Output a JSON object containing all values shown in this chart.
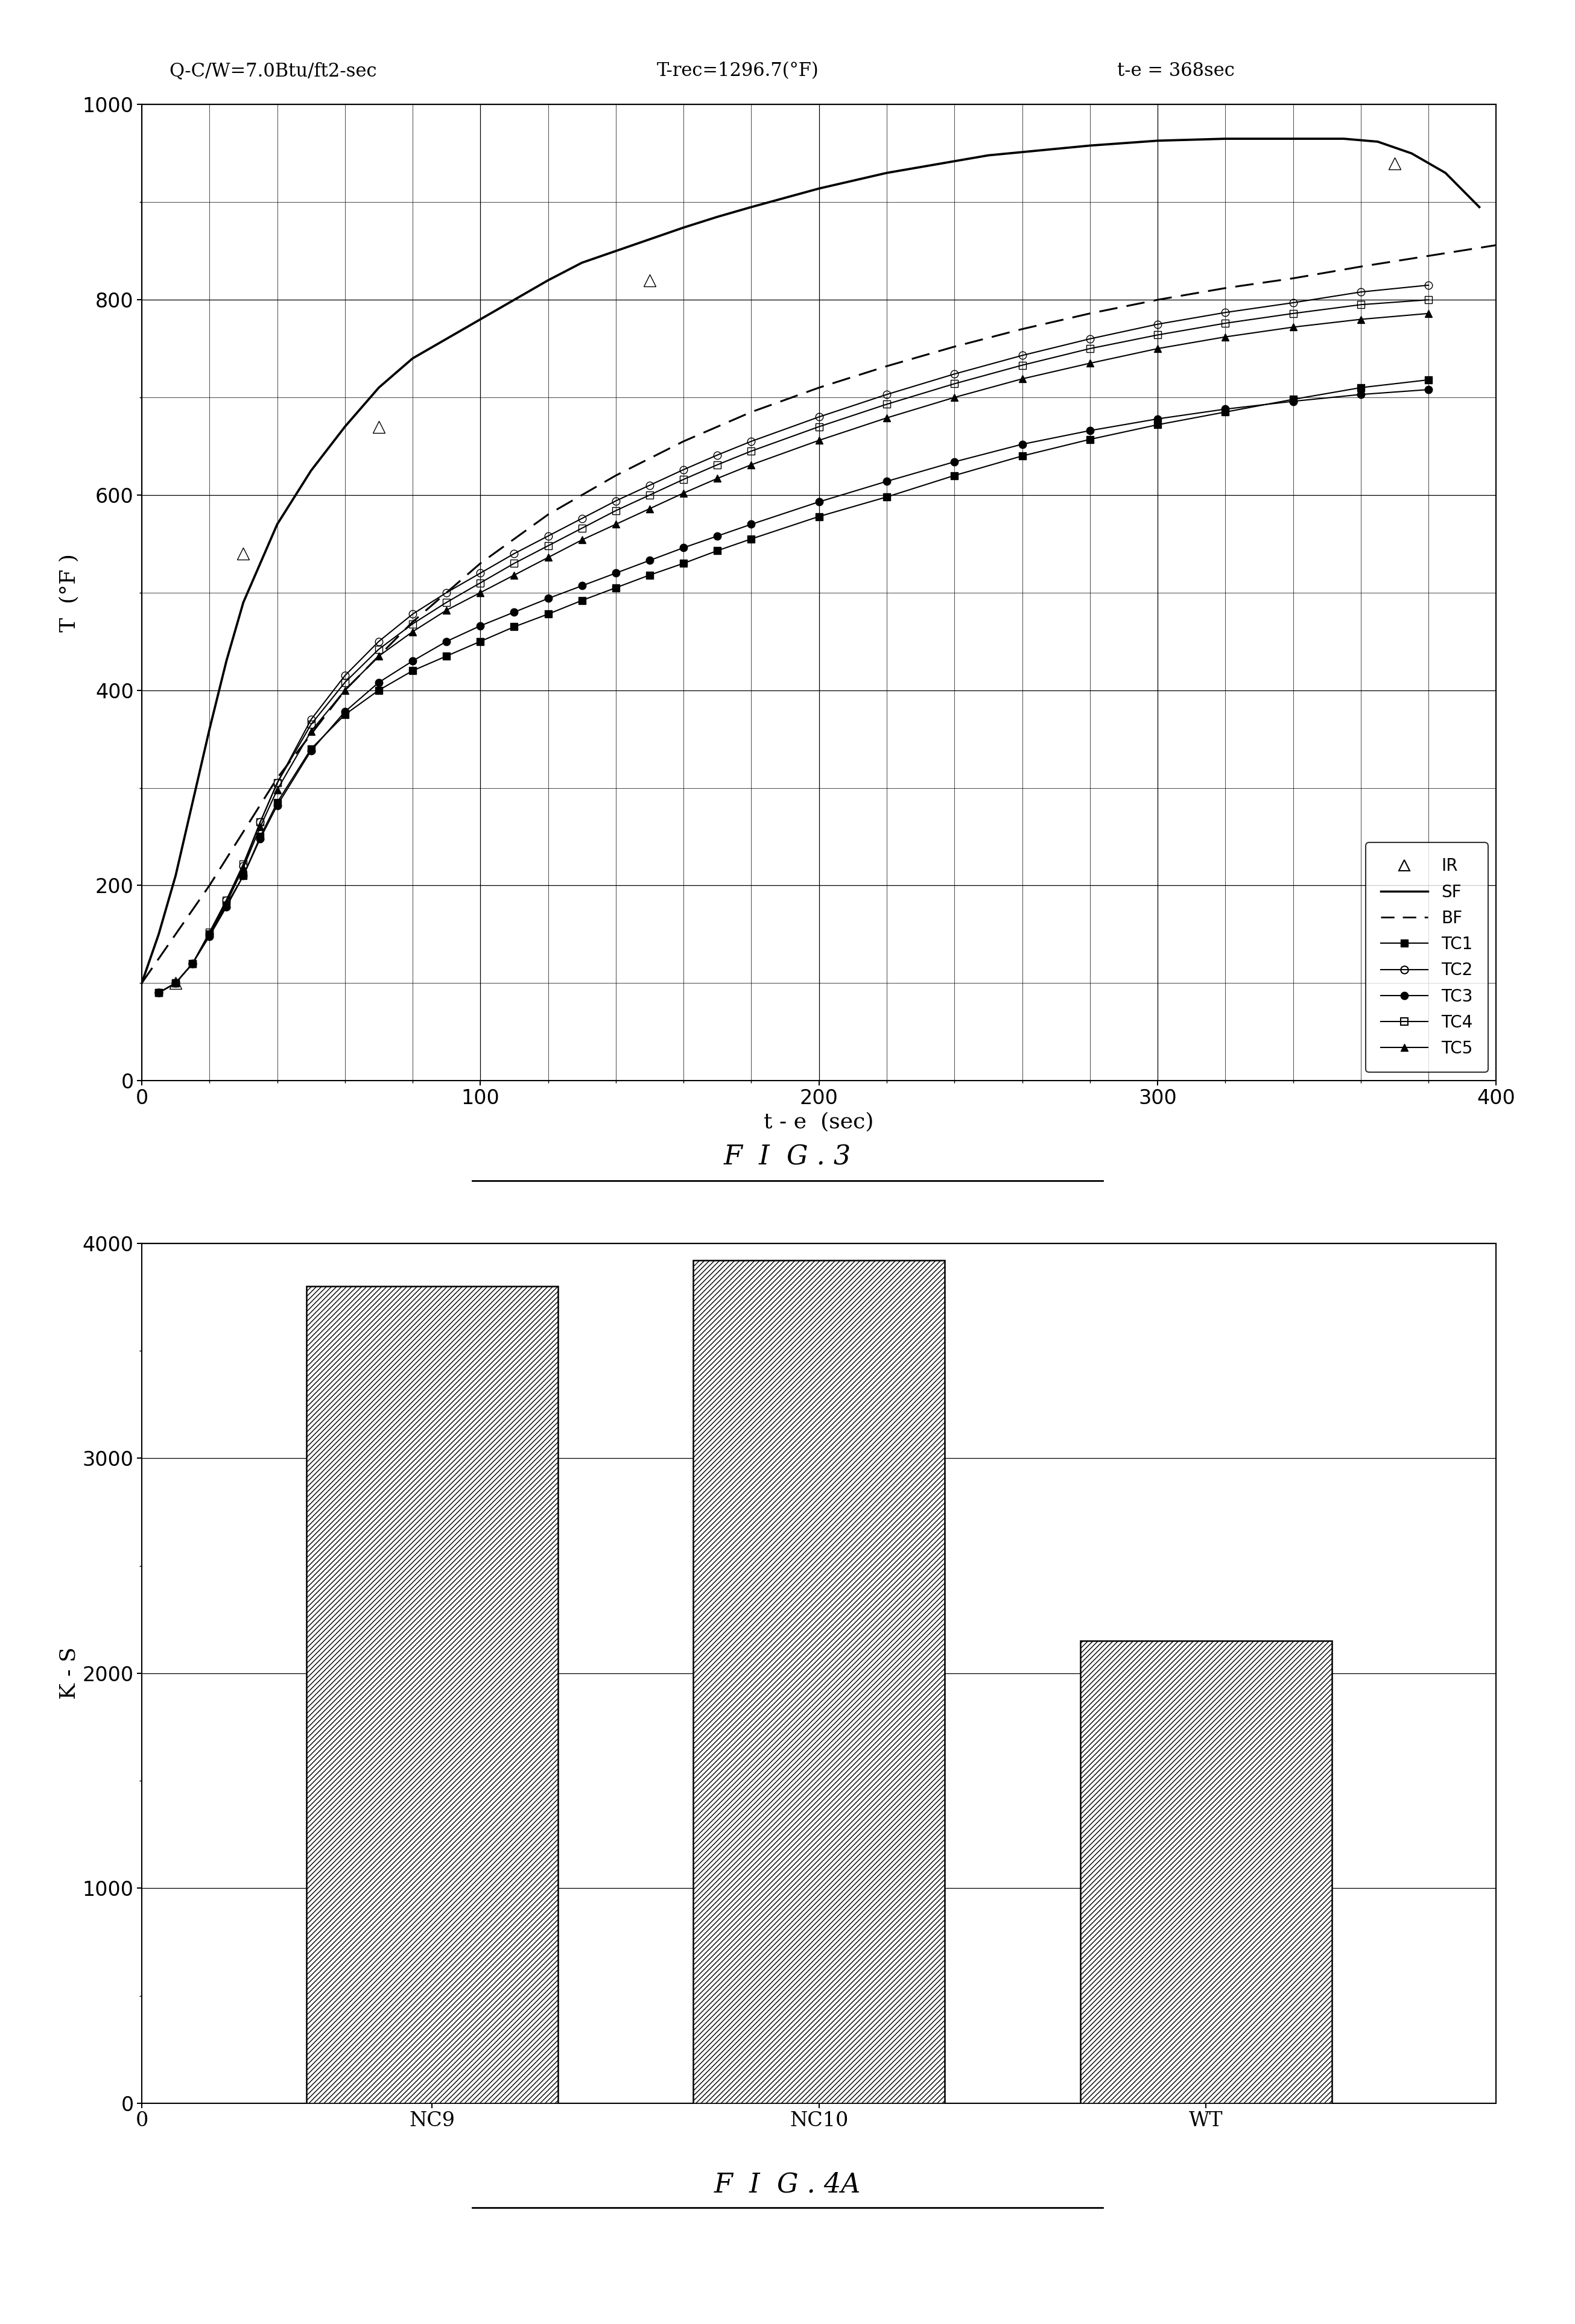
{
  "fig3": {
    "title_left": "Q-C/W=7.0Btu/ft2-sec",
    "title_mid": "T-rec=1296.7(°F)",
    "title_right": "t-e = 368sec",
    "xlabel": "t - e  (sec)",
    "ylabel": "T  (°F )",
    "xlim": [
      0,
      400
    ],
    "ylim": [
      0,
      1000
    ],
    "xticks": [
      0,
      100,
      200,
      300,
      400
    ],
    "yticks": [
      0,
      200,
      400,
      600,
      800,
      1000
    ],
    "IR_x": [
      10,
      30,
      70,
      150,
      370
    ],
    "IR_y": [
      100,
      540,
      670,
      820,
      940
    ],
    "SF_x": [
      0,
      5,
      10,
      15,
      20,
      25,
      30,
      40,
      50,
      60,
      70,
      80,
      90,
      100,
      110,
      120,
      130,
      140,
      150,
      160,
      170,
      180,
      200,
      220,
      250,
      280,
      300,
      320,
      340,
      355,
      365,
      375,
      385,
      395
    ],
    "SF_y": [
      100,
      150,
      210,
      285,
      360,
      430,
      490,
      570,
      625,
      670,
      710,
      740,
      760,
      780,
      800,
      820,
      838,
      850,
      862,
      874,
      885,
      895,
      914,
      930,
      948,
      958,
      963,
      965,
      965,
      965,
      962,
      950,
      930,
      895
    ],
    "BF_x": [
      0,
      20,
      40,
      60,
      80,
      100,
      120,
      140,
      160,
      180,
      200,
      220,
      240,
      260,
      280,
      300,
      320,
      340,
      360,
      380,
      400
    ],
    "BF_y": [
      100,
      200,
      310,
      400,
      470,
      530,
      580,
      620,
      655,
      685,
      710,
      732,
      752,
      770,
      786,
      800,
      812,
      822,
      834,
      845,
      856
    ],
    "TC1_x": [
      5,
      10,
      15,
      20,
      25,
      30,
      35,
      40,
      50,
      60,
      70,
      80,
      90,
      100,
      110,
      120,
      130,
      140,
      150,
      160,
      170,
      180,
      200,
      220,
      240,
      260,
      280,
      300,
      320,
      340,
      360,
      380
    ],
    "TC1_y": [
      90,
      100,
      120,
      150,
      180,
      210,
      250,
      285,
      340,
      375,
      400,
      420,
      435,
      450,
      465,
      478,
      492,
      505,
      518,
      530,
      543,
      555,
      578,
      598,
      620,
      640,
      657,
      672,
      685,
      698,
      710,
      718
    ],
    "TC2_x": [
      5,
      10,
      15,
      20,
      25,
      30,
      35,
      40,
      50,
      60,
      70,
      80,
      90,
      100,
      110,
      120,
      130,
      140,
      150,
      160,
      170,
      180,
      200,
      220,
      240,
      260,
      280,
      300,
      320,
      340,
      360,
      380
    ],
    "TC2_y": [
      90,
      100,
      120,
      150,
      185,
      220,
      265,
      305,
      370,
      415,
      450,
      478,
      500,
      520,
      540,
      558,
      576,
      594,
      610,
      626,
      641,
      655,
      680,
      703,
      724,
      743,
      760,
      775,
      787,
      797,
      808,
      815
    ],
    "TC3_x": [
      5,
      10,
      15,
      20,
      25,
      30,
      35,
      40,
      50,
      60,
      70,
      80,
      90,
      100,
      110,
      120,
      130,
      140,
      150,
      160,
      170,
      180,
      200,
      220,
      240,
      260,
      280,
      300,
      320,
      340,
      360,
      380
    ],
    "TC3_y": [
      90,
      100,
      120,
      148,
      178,
      210,
      248,
      282,
      338,
      378,
      408,
      430,
      450,
      466,
      480,
      494,
      507,
      520,
      533,
      546,
      558,
      570,
      593,
      614,
      634,
      652,
      666,
      678,
      688,
      696,
      703,
      708
    ],
    "TC4_x": [
      5,
      10,
      15,
      20,
      25,
      30,
      35,
      40,
      50,
      60,
      70,
      80,
      90,
      100,
      110,
      120,
      130,
      140,
      150,
      160,
      170,
      180,
      200,
      220,
      240,
      260,
      280,
      300,
      320,
      340,
      360,
      380
    ],
    "TC4_y": [
      90,
      100,
      120,
      152,
      185,
      222,
      265,
      305,
      365,
      408,
      442,
      468,
      490,
      510,
      530,
      548,
      566,
      584,
      600,
      616,
      631,
      645,
      670,
      693,
      714,
      733,
      750,
      764,
      776,
      786,
      795,
      800
    ],
    "TC5_x": [
      5,
      10,
      15,
      20,
      25,
      30,
      35,
      40,
      50,
      60,
      70,
      80,
      90,
      100,
      110,
      120,
      130,
      140,
      150,
      160,
      170,
      180,
      200,
      220,
      240,
      260,
      280,
      300,
      320,
      340,
      360,
      380
    ],
    "TC5_y": [
      90,
      100,
      120,
      150,
      182,
      218,
      260,
      298,
      358,
      400,
      435,
      460,
      482,
      500,
      518,
      536,
      554,
      570,
      586,
      602,
      617,
      631,
      656,
      679,
      700,
      719,
      735,
      750,
      762,
      772,
      780,
      786
    ]
  },
  "fig4a": {
    "categories": [
      "NC9",
      "NC10",
      "WT"
    ],
    "values": [
      3800,
      3920,
      2150
    ],
    "ylabel": "K - S",
    "ylim": [
      0,
      4000
    ],
    "yticks": [
      0,
      1000,
      2000,
      3000,
      4000
    ]
  },
  "fig3_label": "F  I  G . 3",
  "fig4a_label": "F  I  G . 4A"
}
